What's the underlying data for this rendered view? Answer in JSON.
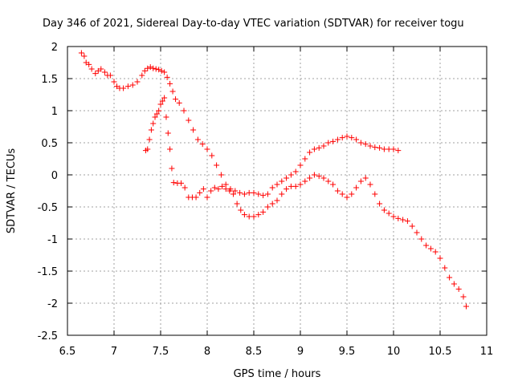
{
  "chart_data": {
    "type": "scatter",
    "title": "Day 346 of 2021, Sidereal Day-to-day VTEC variation (SDTVAR) for receiver togu",
    "xlabel": "GPS time / hours",
    "ylabel": "SDTVAR / TECUs",
    "xlim": [
      6.5,
      11
    ],
    "ylim": [
      -2.5,
      2
    ],
    "xticks": [
      6.5,
      7,
      7.5,
      8,
      8.5,
      9,
      9.5,
      10,
      10.5,
      11
    ],
    "yticks": [
      -2.5,
      -2,
      -1.5,
      -1,
      -0.5,
      0,
      0.5,
      1,
      1.5,
      2
    ],
    "xtick_labels": [
      "6.5",
      "7",
      "7.5",
      "8",
      "8.5",
      "9",
      "9.5",
      "10",
      "10.5",
      "11"
    ],
    "ytick_labels": [
      "-2.5",
      "-2",
      "-1.5",
      "-1",
      "-0.5",
      "0",
      "0.5",
      "1",
      "1.5",
      "2"
    ],
    "grid": true,
    "marker": "+",
    "series": [
      {
        "name": "trace 1",
        "color": "#ff0000",
        "x": [
          6.65,
          6.68,
          6.7,
          6.73,
          6.76,
          6.8,
          6.83,
          6.86,
          6.9,
          6.93,
          6.96,
          7.0,
          7.03,
          7.06,
          7.1,
          7.15,
          7.2,
          7.25,
          7.3,
          7.33,
          7.36,
          7.39,
          7.42,
          7.45,
          7.48,
          7.51,
          7.54,
          7.57,
          7.6,
          7.63,
          7.66,
          7.7,
          7.75,
          7.8,
          7.85,
          7.9,
          7.95,
          8.0,
          8.05,
          8.1,
          8.15,
          8.2,
          8.25,
          8.3,
          8.35,
          8.4,
          8.45,
          8.5,
          8.55,
          8.6,
          8.65,
          8.7,
          8.75,
          8.8,
          8.85,
          8.9,
          8.95,
          9.0,
          9.05,
          9.1,
          9.15,
          9.2,
          9.25,
          9.3,
          9.35,
          9.4,
          9.45,
          9.5,
          9.55,
          9.6,
          9.65,
          9.7,
          9.75,
          9.8,
          9.85,
          9.9,
          9.95,
          10.0,
          10.05
        ],
        "y": [
          1.9,
          1.85,
          1.75,
          1.72,
          1.65,
          1.58,
          1.62,
          1.65,
          1.6,
          1.55,
          1.55,
          1.45,
          1.38,
          1.35,
          1.35,
          1.38,
          1.4,
          1.45,
          1.55,
          1.62,
          1.66,
          1.68,
          1.66,
          1.65,
          1.64,
          1.62,
          1.6,
          1.52,
          1.42,
          1.3,
          1.18,
          1.12,
          1.0,
          0.85,
          0.7,
          0.55,
          0.48,
          0.4,
          0.3,
          0.15,
          0.0,
          -0.15,
          -0.22,
          -0.25,
          -0.28,
          -0.3,
          -0.28,
          -0.28,
          -0.3,
          -0.32,
          -0.3,
          -0.2,
          -0.15,
          -0.1,
          -0.05,
          0.0,
          0.05,
          0.15,
          0.25,
          0.35,
          0.4,
          0.42,
          0.45,
          0.5,
          0.52,
          0.55,
          0.58,
          0.6,
          0.58,
          0.55,
          0.5,
          0.48,
          0.45,
          0.43,
          0.42,
          0.4,
          0.4,
          0.4,
          0.38
        ]
      },
      {
        "name": "trace 2",
        "color": "#ff0000",
        "x": [
          7.34,
          7.36,
          7.38,
          7.4,
          7.42,
          7.44,
          7.46,
          7.48,
          7.5,
          7.52,
          7.54,
          7.56,
          7.58,
          7.6,
          7.62,
          7.64,
          7.68,
          7.72,
          7.76,
          7.8,
          7.84,
          7.88,
          7.92,
          7.96,
          8.0,
          8.04,
          8.08,
          8.12,
          8.16,
          8.2,
          8.24,
          8.28,
          8.32,
          8.36,
          8.4,
          8.45,
          8.5,
          8.55,
          8.6,
          8.65,
          8.7,
          8.75,
          8.8,
          8.85,
          8.9,
          8.95,
          9.0,
          9.05,
          9.1,
          9.15,
          9.2,
          9.25,
          9.3,
          9.35,
          9.4,
          9.45,
          9.5,
          9.55,
          9.6,
          9.65,
          9.7,
          9.75,
          9.8,
          9.85,
          9.9,
          9.95,
          10.0,
          10.05,
          10.1,
          10.15,
          10.2,
          10.25,
          10.3,
          10.35,
          10.4,
          10.45,
          10.5,
          10.55,
          10.6,
          10.65,
          10.7,
          10.75,
          10.78
        ],
        "y": [
          0.38,
          0.4,
          0.55,
          0.7,
          0.8,
          0.9,
          0.95,
          1.0,
          1.1,
          1.15,
          1.2,
          0.9,
          0.65,
          0.4,
          0.1,
          -0.12,
          -0.13,
          -0.13,
          -0.2,
          -0.35,
          -0.35,
          -0.35,
          -0.28,
          -0.22,
          -0.35,
          -0.25,
          -0.2,
          -0.22,
          -0.18,
          -0.22,
          -0.25,
          -0.3,
          -0.45,
          -0.55,
          -0.62,
          -0.65,
          -0.65,
          -0.62,
          -0.58,
          -0.5,
          -0.45,
          -0.4,
          -0.3,
          -0.22,
          -0.18,
          -0.18,
          -0.15,
          -0.1,
          -0.05,
          0.0,
          -0.02,
          -0.05,
          -0.1,
          -0.15,
          -0.25,
          -0.3,
          -0.35,
          -0.3,
          -0.2,
          -0.1,
          -0.05,
          -0.15,
          -0.3,
          -0.45,
          -0.55,
          -0.6,
          -0.65,
          -0.68,
          -0.7,
          -0.72,
          -0.8,
          -0.9,
          -1.0,
          -1.1,
          -1.15,
          -1.2,
          -1.3,
          -1.45,
          -1.6,
          -1.7,
          -1.78,
          -1.9,
          -2.05
        ]
      }
    ]
  }
}
